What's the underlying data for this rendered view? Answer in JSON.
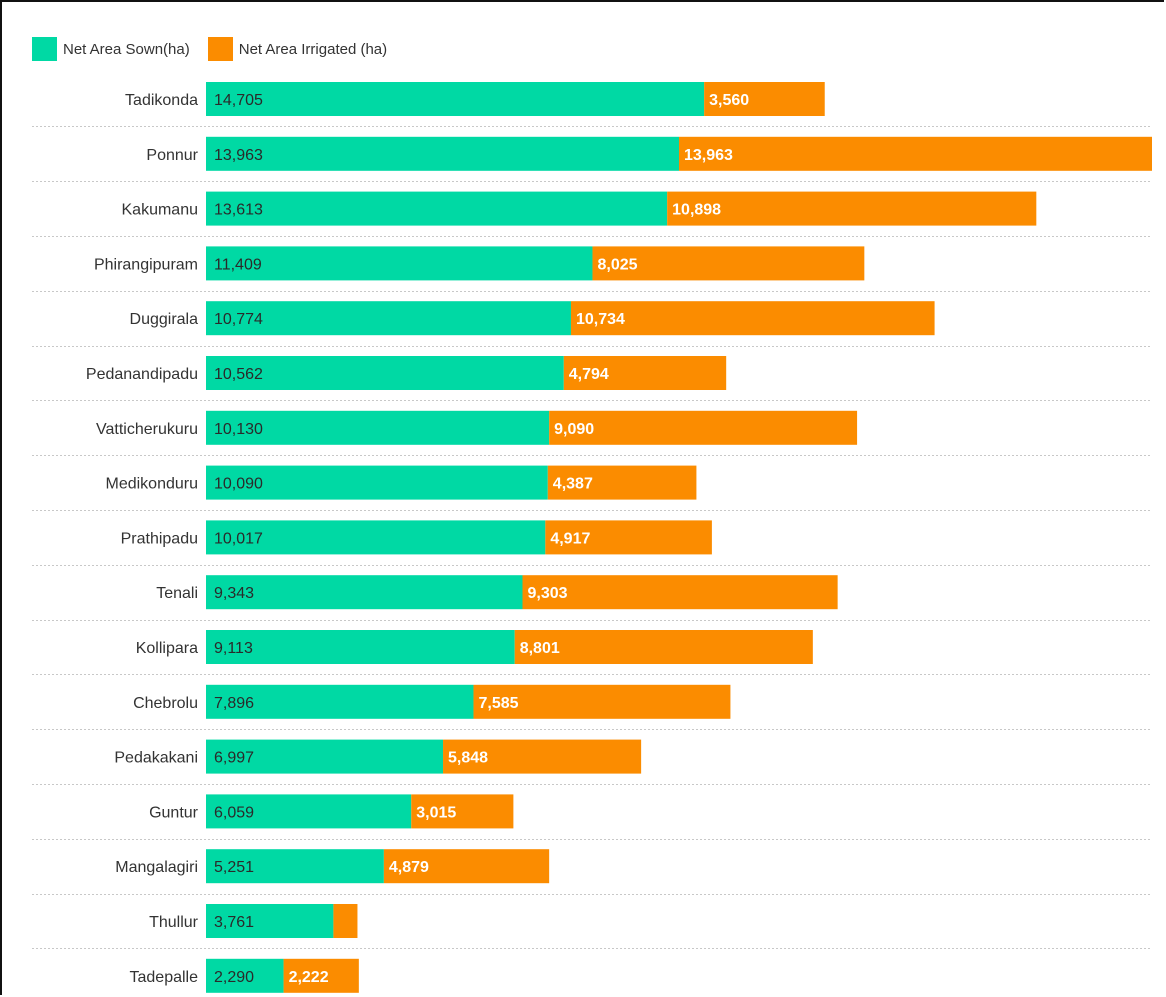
{
  "legend": {
    "sown_label": "Net Area Sown(ha)",
    "irrigated_label": "Net Area Irrigated (ha)"
  },
  "colors": {
    "sown": "#00d9a4",
    "irrigated": "#fb8c00"
  },
  "chart_data": {
    "type": "bar",
    "orientation": "horizontal",
    "stacked": true,
    "legend_position": "top-left",
    "grid": true,
    "categories": [
      "Tadikonda",
      "Ponnur",
      "Kakumanu",
      "Phirangipuram",
      "Duggirala",
      "Pedanandipadu",
      "Vatticherukuru",
      "Medikonduru",
      "Prathipadu",
      "Tenali",
      "Kollipara",
      "Chebrolu",
      "Pedakakani",
      "Guntur",
      "Mangalagiri",
      "Thullur",
      "Tadepalle"
    ],
    "series": [
      {
        "name": "Net Area Sown(ha)",
        "values": [
          14705,
          13963,
          13613,
          11409,
          10774,
          10562,
          10130,
          10090,
          10017,
          9343,
          9113,
          7896,
          6997,
          6059,
          5251,
          3761,
          2290
        ],
        "labels": [
          "14,705",
          "13,963",
          "13,613",
          "11,409",
          "10,774",
          "10,562",
          "10,130",
          "10,090",
          "10,017",
          "9,343",
          "9,113",
          "7,896",
          "6,997",
          "6,059",
          "5,251",
          "3,761",
          "2,290"
        ]
      },
      {
        "name": "Net Area Irrigated (ha)",
        "values": [
          3560,
          13963,
          10898,
          8025,
          10734,
          4794,
          9090,
          4387,
          4917,
          9303,
          8801,
          7585,
          5848,
          3015,
          4879,
          710,
          2222
        ],
        "labels": [
          "3,560",
          "13,963",
          "10,898",
          "8,025",
          "10,734",
          "4,794",
          "9,090",
          "4,387",
          "4,917",
          "9,303",
          "8,801",
          "7,585",
          "5,848",
          "3,015",
          "4,879",
          "",
          "2,222"
        ]
      }
    ],
    "xlim": [
      0,
      27926
    ]
  }
}
